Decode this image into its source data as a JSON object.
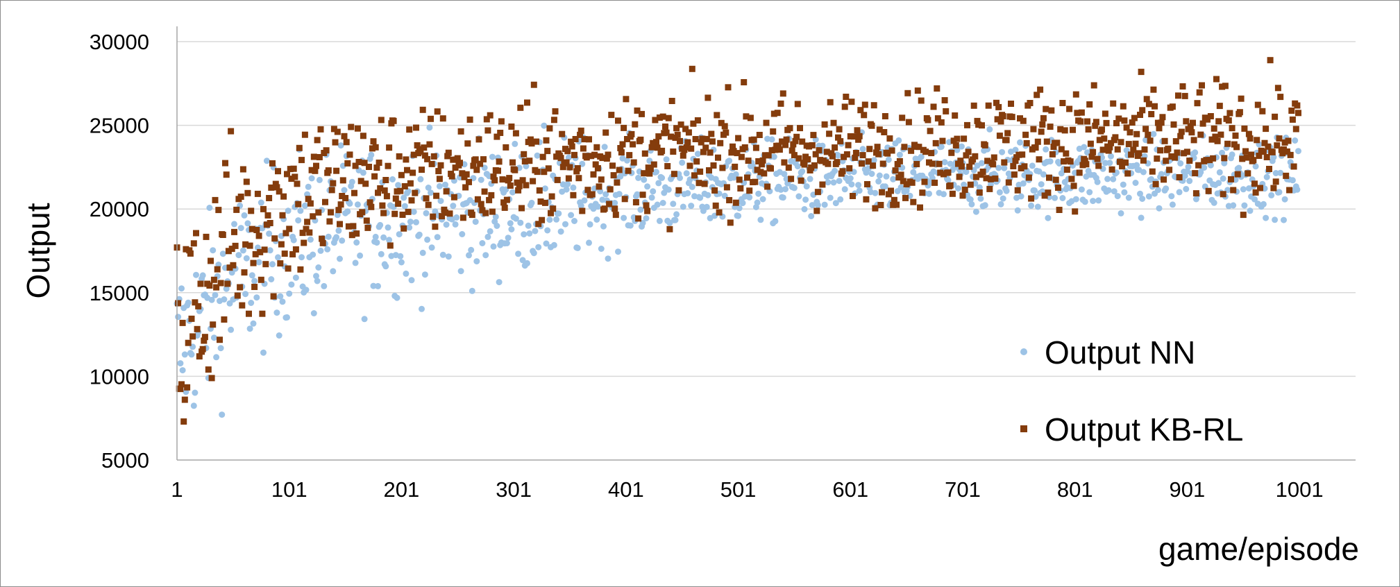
{
  "chart_data": {
    "type": "scatter",
    "title": "",
    "xlabel": "game/episode",
    "ylabel": "Output",
    "xlim": [
      1,
      1051
    ],
    "ylim": [
      5000,
      30000
    ],
    "x_ticks": [
      "1",
      "101",
      "201",
      "301",
      "401",
      "501",
      "601",
      "701",
      "801",
      "901",
      "1001"
    ],
    "y_ticks": [
      "5000",
      "10000",
      "15000",
      "20000",
      "25000",
      "30000"
    ],
    "grid": "horizontal",
    "legend_position": "bottom-right",
    "n_points": 1000,
    "series": [
      {
        "name": "Output NN",
        "color": "#9DC3E6",
        "marker": "circle",
        "trend": [
          [
            1,
            11500
          ],
          [
            50,
            15500
          ],
          [
            100,
            18000
          ],
          [
            150,
            19000
          ],
          [
            200,
            19500
          ],
          [
            300,
            20000
          ],
          [
            400,
            21000
          ],
          [
            500,
            21500
          ],
          [
            600,
            21800
          ],
          [
            700,
            22000
          ],
          [
            800,
            22000
          ],
          [
            900,
            22000
          ],
          [
            1000,
            22000
          ]
        ],
        "spread": [
          [
            1,
            4500
          ],
          [
            100,
            4000
          ],
          [
            200,
            3500
          ],
          [
            350,
            3000
          ],
          [
            400,
            2200
          ],
          [
            600,
            1800
          ],
          [
            1000,
            1700
          ]
        ],
        "min_value": 6000,
        "max_value": 25500
      },
      {
        "name": "Output KB-RL",
        "color": "#843C0C",
        "marker": "square",
        "trend": [
          [
            1,
            12000
          ],
          [
            50,
            18000
          ],
          [
            100,
            20500
          ],
          [
            150,
            21500
          ],
          [
            200,
            22000
          ],
          [
            300,
            22500
          ],
          [
            400,
            23200
          ],
          [
            500,
            23500
          ],
          [
            600,
            23500
          ],
          [
            700,
            23800
          ],
          [
            800,
            24000
          ],
          [
            900,
            24000
          ],
          [
            1000,
            24000
          ]
        ],
        "spread": [
          [
            1,
            5500
          ],
          [
            100,
            4200
          ],
          [
            200,
            3200
          ],
          [
            400,
            2800
          ],
          [
            600,
            2600
          ],
          [
            1000,
            2800
          ]
        ],
        "min_value": 6200,
        "max_value": 30500
      }
    ]
  }
}
